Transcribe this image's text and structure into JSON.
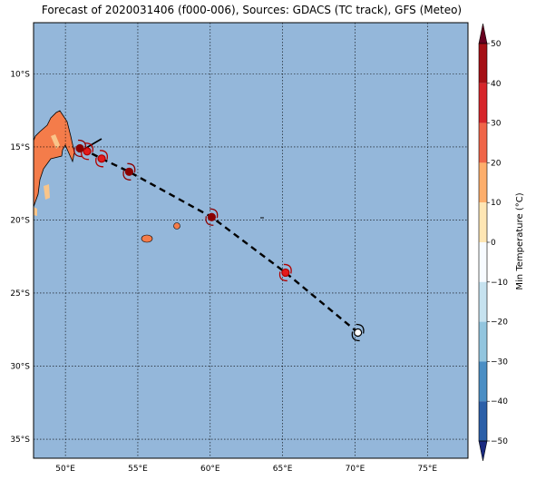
{
  "title": "Forecast of 2020031406 (f000-006), Sources: GDACS (TC track), GFS (Meteo)",
  "map": {
    "lon_range": [
      47.8,
      77.8
    ],
    "lat_range": [
      -36.3,
      -6.5
    ],
    "lon_ticks": [
      "50°E",
      "55°E",
      "60°E",
      "65°E",
      "70°E",
      "75°E"
    ],
    "lat_ticks": [
      "10°S",
      "15°S",
      "20°S",
      "25°S",
      "30°S",
      "35°S"
    ],
    "ocean_color": "#94b7da",
    "land_color": "#f47c4a",
    "land_hot_color": "#f9c58a",
    "gridlines": true
  },
  "track": [
    {
      "lon": 70.2,
      "lat": -27.7,
      "marker": "white-storm-icon"
    },
    {
      "lon": 65.2,
      "lat": -23.6,
      "marker": "red-storm-icon"
    },
    {
      "lon": 60.1,
      "lat": -19.8,
      "marker": "darkred-storm-icon"
    },
    {
      "lon": 54.4,
      "lat": -16.7,
      "marker": "darkred-storm-icon"
    },
    {
      "lon": 52.5,
      "lat": -15.8,
      "marker": "red-storm-icon"
    },
    {
      "lon": 51.5,
      "lat": -15.3,
      "marker": "red-storm-icon"
    },
    {
      "lon": 51.0,
      "lat": -15.1,
      "marker": "darkred-storm-icon"
    }
  ],
  "colorbar": {
    "label": "Min Temperature (°C)",
    "ticks": [
      "50",
      "40",
      "30",
      "20",
      "10",
      "0",
      "−10",
      "−20",
      "−30",
      "−40",
      "−50"
    ],
    "colors": [
      "#67001f",
      "#a50f15",
      "#d6252a",
      "#ef6548",
      "#fdae6b",
      "#fee6b4",
      "#f7fbff",
      "#c6e2ef",
      "#92c5de",
      "#4a8ec4",
      "#2b5fa8",
      "#1a2a80"
    ]
  }
}
